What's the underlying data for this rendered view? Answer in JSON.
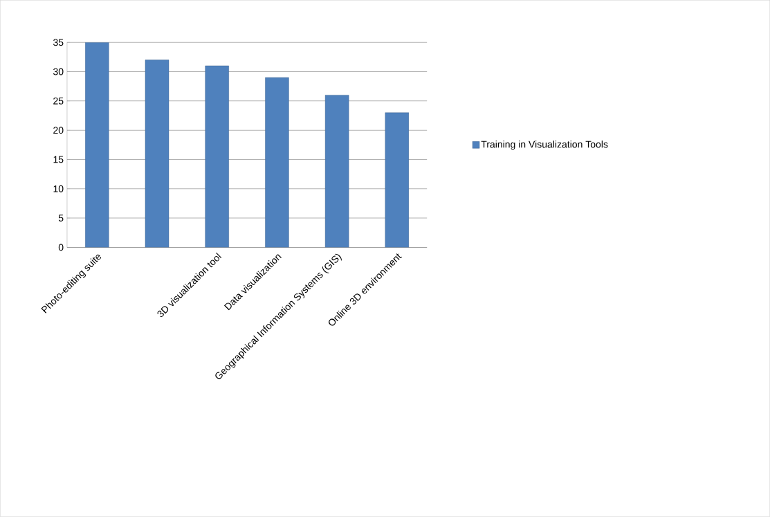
{
  "chart_data": {
    "type": "bar",
    "categories": [
      "Photo-editing suite",
      null,
      "3D visualization tool",
      "Data visualization",
      "Geographical Information Systems (GIS)",
      "Online 3D environment"
    ],
    "series": [
      {
        "name": "Training in Visualization Tools",
        "color": "#4f81bd",
        "values": [
          35,
          32,
          31,
          29,
          26,
          23
        ]
      }
    ],
    "ylim": [
      0,
      35
    ],
    "yticks": [
      0,
      5,
      10,
      15,
      20,
      25,
      30,
      35
    ],
    "grid": "y",
    "legend": "right"
  }
}
